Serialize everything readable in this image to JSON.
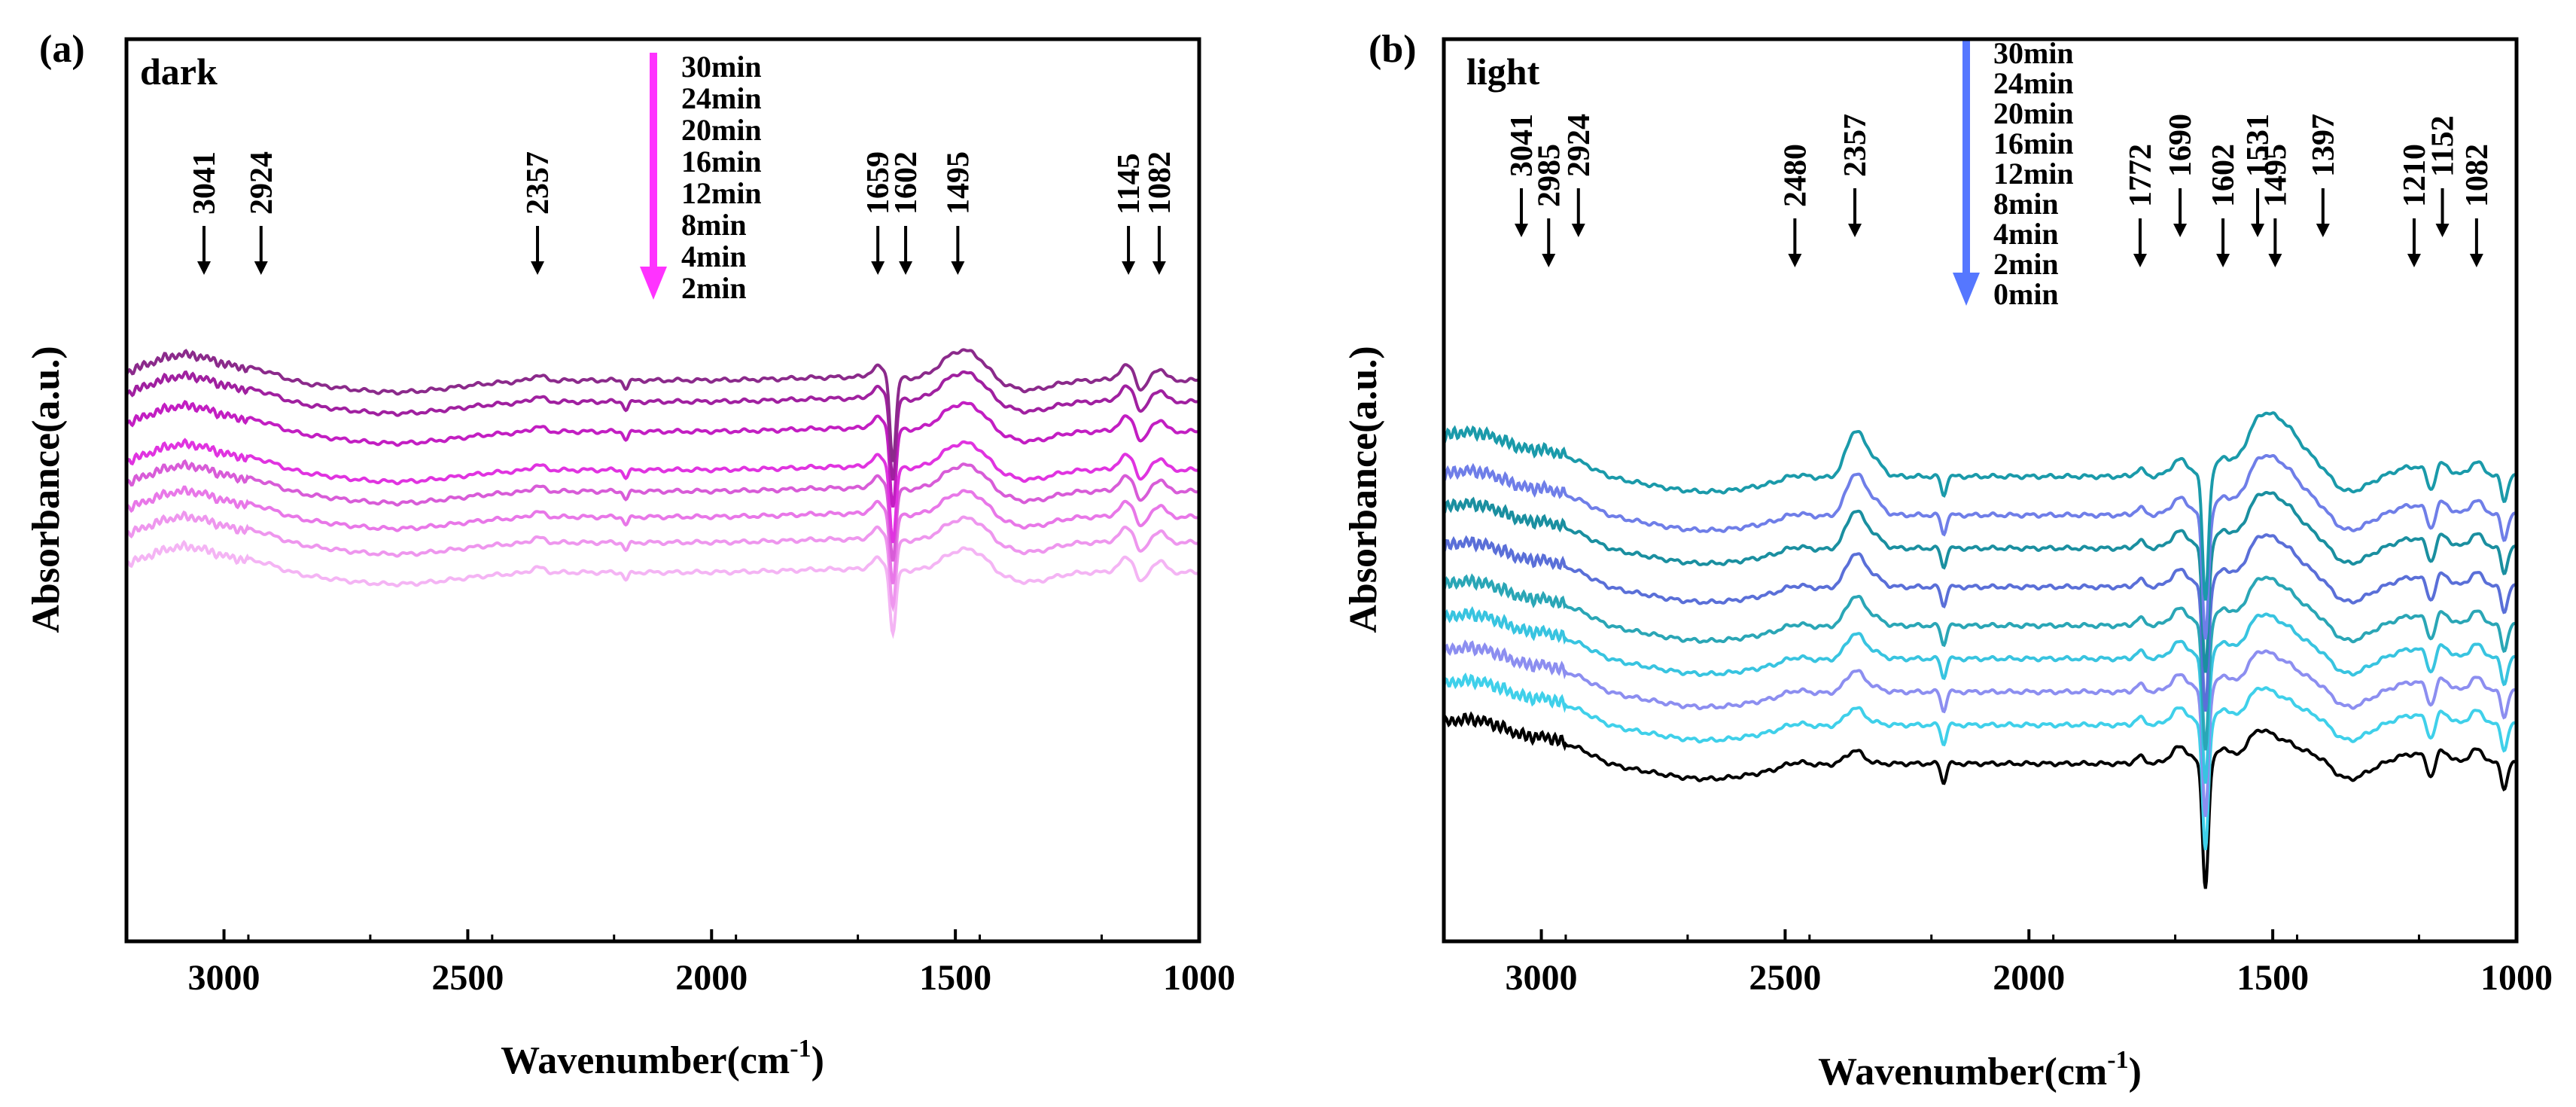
{
  "chart_data": [
    {
      "type": "line",
      "panel_label": "(a)",
      "condition": "dark",
      "xlabel_main": "Wavenumber(cm",
      "xlabel_sup": "-1",
      "xlabel_close": ")",
      "ylabel": "Absorbance(a.u.)",
      "xlim": [
        3200,
        1000
      ],
      "x_reversed": true,
      "xticks": [
        3000,
        2500,
        2000,
        1500,
        1000
      ],
      "xtick_labels": [
        "3000",
        "2500",
        "2000",
        "1500",
        "1000"
      ],
      "y_ticks_shown": false,
      "arrow_color": "#ff33ff",
      "legend_order_note": "top spectrum = 30min, bottom = 2min",
      "legend": [
        "30min",
        "24min",
        "20min",
        "16min",
        "12min",
        "8min",
        "4min",
        "2min"
      ],
      "series": [
        {
          "name": "30min",
          "color": "#8b2a8b",
          "offset": 2.6
        },
        {
          "name": "24min",
          "color": "#a020a0",
          "offset": 2.35
        },
        {
          "name": "20min",
          "color": "#c21ec2",
          "offset": 2.0
        },
        {
          "name": "16min",
          "color": "#e033e0",
          "offset": 1.55
        },
        {
          "name": "12min",
          "color": "#d85cd8",
          "offset": 1.3
        },
        {
          "name": "8min",
          "color": "#e877e8",
          "offset": 1.0
        },
        {
          "name": "4min",
          "color": "#ee96ee",
          "offset": 0.7
        },
        {
          "name": "2min",
          "color": "#f4b4f4",
          "offset": 0.35
        }
      ],
      "peaks": [
        {
          "label": "3041",
          "x": 3041
        },
        {
          "label": "2924",
          "x": 2924
        },
        {
          "label": "2357",
          "x": 2357
        },
        {
          "label": "1659",
          "x": 1659
        },
        {
          "label": "1602",
          "x": 1602
        },
        {
          "label": "1495",
          "x": 1495
        },
        {
          "label": "1145",
          "x": 1145
        },
        {
          "label": "1082",
          "x": 1082
        }
      ]
    },
    {
      "type": "line",
      "panel_label": "(b)",
      "condition": "light",
      "xlabel_main": "Wavenumber(cm",
      "xlabel_sup": "-1",
      "xlabel_close": ")",
      "ylabel": "Absorbance(a.u.)",
      "xlim": [
        3200,
        1000
      ],
      "x_reversed": true,
      "xticks": [
        3000,
        2500,
        2000,
        1500,
        1000
      ],
      "xtick_labels": [
        "3000",
        "2500",
        "2000",
        "1500",
        "1000"
      ],
      "y_ticks_shown": false,
      "arrow_color": "#5577ff",
      "legend_order_note": "top spectrum = 30min, bottom = 0min",
      "legend": [
        "30min",
        "24min",
        "20min",
        "16min",
        "12min",
        "8min",
        "4min",
        "2min",
        "0min"
      ],
      "series": [
        {
          "name": "30min",
          "color": "#1a9aaa",
          "offset": 3.4
        },
        {
          "name": "24min",
          "color": "#6f7ee8",
          "offset": 3.05
        },
        {
          "name": "20min",
          "color": "#1a8fa0",
          "offset": 2.75
        },
        {
          "name": "16min",
          "color": "#5a6fd8",
          "offset": 2.4
        },
        {
          "name": "12min",
          "color": "#2aa6b6",
          "offset": 2.05
        },
        {
          "name": "8min",
          "color": "#38c4e0",
          "offset": 1.75
        },
        {
          "name": "4min",
          "color": "#8c8ef0",
          "offset": 1.45
        },
        {
          "name": "2min",
          "color": "#3fd0ea",
          "offset": 1.15
        },
        {
          "name": "0min",
          "color": "#000000",
          "offset": 0.8
        }
      ],
      "peaks": [
        {
          "label": "3041",
          "x": 3041
        },
        {
          "label": "2985",
          "x": 2985
        },
        {
          "label": "2924",
          "x": 2924
        },
        {
          "label": "2480",
          "x": 2480
        },
        {
          "label": "2357",
          "x": 2357
        },
        {
          "label": "1772",
          "x": 1772
        },
        {
          "label": "1690",
          "x": 1690
        },
        {
          "label": "1602",
          "x": 1602
        },
        {
          "label": "1531",
          "x": 1531
        },
        {
          "label": "1495",
          "x": 1495
        },
        {
          "label": "1397",
          "x": 1397
        },
        {
          "label": "1210",
          "x": 1210
        },
        {
          "label": "1152",
          "x": 1152
        },
        {
          "label": "1082",
          "x": 1082
        }
      ]
    }
  ]
}
